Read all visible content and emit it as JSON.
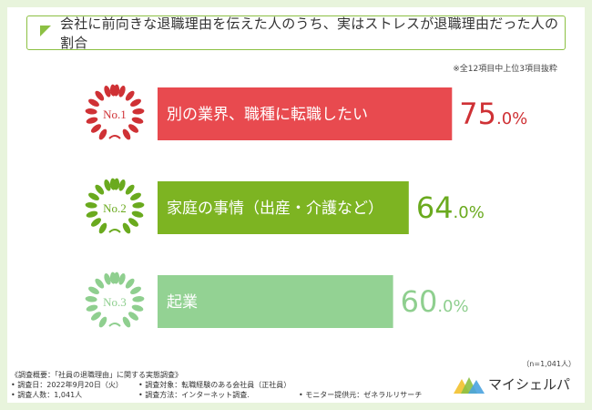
{
  "title": "会社に前向きな退職理由を伝えた人のうち、実はストレスが退職理由だった人の割合",
  "note": "※全12項目中上位3項目抜粋",
  "chart_data": {
    "type": "bar",
    "orientation": "horizontal",
    "title": "会社に前向きな退職理由を伝えた人のうち、実はストレスが退職理由だった人の割合",
    "unit": "%",
    "xlim": [
      0,
      100
    ],
    "categories": [
      "別の業界、職種に転職したい",
      "家庭の事情（出産・介護など）",
      "起業"
    ],
    "values": [
      75.0,
      64.0,
      60.0
    ],
    "ranks": [
      "No.1",
      "No.2",
      "No.3"
    ],
    "value_labels": [
      {
        "num": "75",
        "dec": ".0%"
      },
      {
        "num": "64",
        "dec": ".0%"
      },
      {
        "num": "60",
        "dec": ".0%"
      }
    ],
    "colors": [
      "#e84a4f",
      "#7db422",
      "#93d293"
    ],
    "rank_colors": [
      "#cf3135",
      "#6aaa1e",
      "#8fcf8f"
    ],
    "value_colors": [
      "#cf3135",
      "#6aaa1e",
      "#8fcf8f"
    ]
  },
  "sample_size": "（n=1,041人）",
  "survey": {
    "heading": "《調査概要：「社員の退職理由」に関する実態調査》",
    "date": "• 調査日：2022年9月20日（火）",
    "target": "• 調査対象：転職経験のある会社員（正社員）",
    "count": "• 調査人数：1,041人",
    "method": "• 調査方法：インターネット調査.",
    "provider": "• モニター提供元：ゼネラルリサーチ"
  },
  "brand": {
    "name": "マイシェルパ",
    "colors": [
      "#f2c12e",
      "#8cc043",
      "#4aa3df"
    ]
  }
}
